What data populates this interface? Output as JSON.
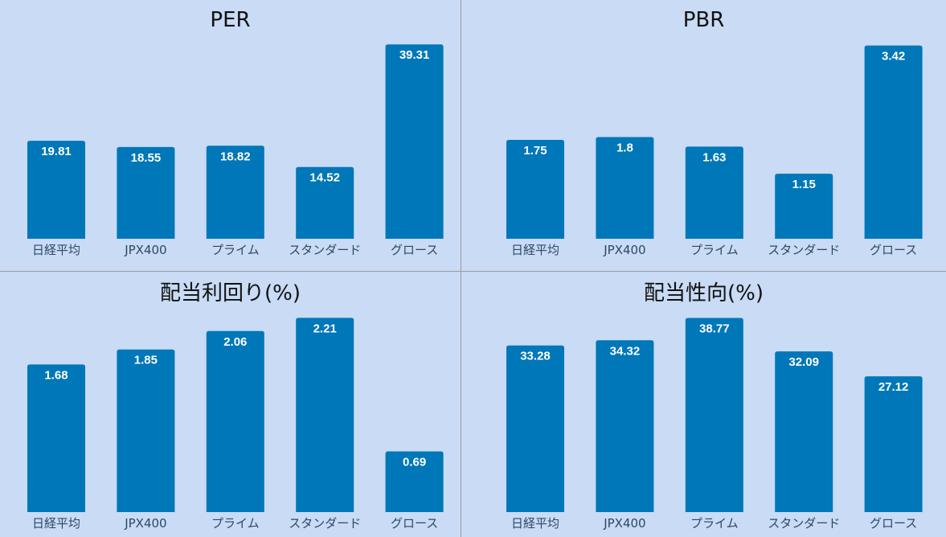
{
  "chart_data": [
    {
      "type": "bar",
      "title": "PER",
      "categories": [
        "日経平均",
        "JPX400",
        "プライム",
        "スタンダード",
        "グロース"
      ],
      "values": [
        19.81,
        18.55,
        18.82,
        14.52,
        39.31
      ],
      "value_labels": [
        "19.81",
        "18.55",
        "18.82",
        "14.52",
        "39.31"
      ],
      "ylim": [
        0,
        40
      ],
      "grid": false,
      "data_labels": "inside-top",
      "bar_color": "#0077b8"
    },
    {
      "type": "bar",
      "title": "PBR",
      "categories": [
        "日経平均",
        "JPX400",
        "プライム",
        "スタンダード",
        "グロース"
      ],
      "values": [
        1.75,
        1.8,
        1.63,
        1.15,
        3.42
      ],
      "value_labels": [
        "1.75",
        "1.8",
        "1.63",
        "1.15",
        "3.42"
      ],
      "ylim": [
        0,
        3.5
      ],
      "grid": false,
      "data_labels": "inside-top",
      "bar_color": "#0077b8"
    },
    {
      "type": "bar",
      "title": "配当利回り(%)",
      "categories": [
        "日経平均",
        "JPX400",
        "プライム",
        "スタンダード",
        "グロース"
      ],
      "values": [
        1.68,
        1.85,
        2.06,
        2.21,
        0.69
      ],
      "value_labels": [
        "1.68",
        "1.85",
        "2.06",
        "2.21",
        "0.69"
      ],
      "ylim": [
        0,
        2.25
      ],
      "grid": false,
      "data_labels": "inside-top",
      "bar_color": "#0077b8"
    },
    {
      "type": "bar",
      "title": "配当性向(%)",
      "categories": [
        "日経平均",
        "JPX400",
        "プライム",
        "スタンダード",
        "グロース"
      ],
      "values": [
        33.28,
        34.32,
        38.77,
        32.09,
        27.12
      ],
      "value_labels": [
        "33.28",
        "34.32",
        "38.77",
        "32.09",
        "27.12"
      ],
      "ylim": [
        0,
        39.5
      ],
      "grid": false,
      "data_labels": "inside-top",
      "bar_color": "#0077b8"
    }
  ],
  "colors": {
    "background": "#c9dbf5",
    "bar": "#0077b8",
    "bar_label": "#ffffff",
    "tick_label": "#2a4a63",
    "title": "#111111",
    "divider": "#9a9a9a"
  }
}
